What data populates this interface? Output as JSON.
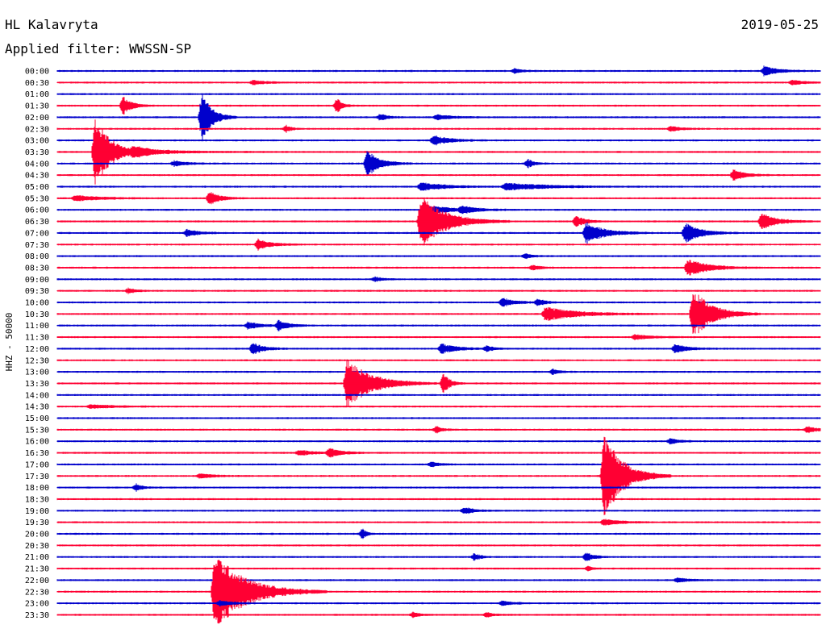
{
  "header": {
    "station": "HL Kalavryta",
    "date": "2019-05-25",
    "filter_label": "Applied filter: WWSSN-SP"
  },
  "chart_data": {
    "type": "line",
    "title": "HL Kalavryta",
    "subtitle": "Applied filter: WWSSN-SP",
    "ylabel": "HHZ - 50000",
    "date": "2019-05-25",
    "line_minutes": 30,
    "colors": {
      "even_line": "#0000cc",
      "odd_line": "#ff0033"
    },
    "rows": [
      "00:00",
      "00:30",
      "01:00",
      "01:30",
      "02:00",
      "02:30",
      "03:00",
      "03:30",
      "04:00",
      "04:30",
      "05:00",
      "05:30",
      "06:00",
      "06:30",
      "07:00",
      "07:30",
      "08:00",
      "08:30",
      "09:00",
      "09:30",
      "10:00",
      "10:30",
      "11:00",
      "11:30",
      "12:00",
      "12:30",
      "13:00",
      "13:30",
      "14:00",
      "14:30",
      "15:00",
      "15:30",
      "16:00",
      "16:30",
      "17:00",
      "17:30",
      "18:00",
      "18:30",
      "19:00",
      "19:30",
      "20:00",
      "20:30",
      "21:00",
      "21:30",
      "22:00",
      "22:30",
      "23:00",
      "23:30"
    ],
    "events": [
      {
        "row": 0,
        "minute": 27.7,
        "amplitude": 0.6,
        "duration": 1.0
      },
      {
        "row": 0,
        "minute": 17.9,
        "amplitude": 0.3,
        "duration": 0.5
      },
      {
        "row": 1,
        "minute": 7.6,
        "amplitude": 0.25,
        "duration": 1.0
      },
      {
        "row": 1,
        "minute": 28.8,
        "amplitude": 0.25,
        "duration": 1.0
      },
      {
        "row": 3,
        "minute": 2.5,
        "amplitude": 1.0,
        "duration": 0.7
      },
      {
        "row": 3,
        "minute": 10.9,
        "amplitude": 0.9,
        "duration": 0.4
      },
      {
        "row": 4,
        "minute": 5.6,
        "amplitude": 3.0,
        "duration": 0.8
      },
      {
        "row": 4,
        "minute": 12.6,
        "amplitude": 0.4,
        "duration": 0.6
      },
      {
        "row": 4,
        "minute": 14.8,
        "amplitude": 0.3,
        "duration": 1.2
      },
      {
        "row": 5,
        "minute": 8.9,
        "amplitude": 0.4,
        "duration": 0.4
      },
      {
        "row": 5,
        "minute": 24.0,
        "amplitude": 0.3,
        "duration": 0.8
      },
      {
        "row": 6,
        "minute": 14.7,
        "amplitude": 0.6,
        "duration": 1.2
      },
      {
        "row": 7,
        "minute": 1.4,
        "amplitude": 4.0,
        "duration": 1.3
      },
      {
        "row": 7,
        "minute": 2.9,
        "amplitude": 0.4,
        "duration": 3.0
      },
      {
        "row": 8,
        "minute": 12.1,
        "amplitude": 1.5,
        "duration": 1.0
      },
      {
        "row": 8,
        "minute": 4.5,
        "amplitude": 0.3,
        "duration": 1.0
      },
      {
        "row": 8,
        "minute": 18.4,
        "amplitude": 0.5,
        "duration": 0.5
      },
      {
        "row": 9,
        "minute": 26.5,
        "amplitude": 0.7,
        "duration": 0.8
      },
      {
        "row": 10,
        "minute": 14.2,
        "amplitude": 0.5,
        "duration": 1.8
      },
      {
        "row": 10,
        "minute": 17.5,
        "amplitude": 0.4,
        "duration": 3.5
      },
      {
        "row": 11,
        "minute": 5.9,
        "amplitude": 0.8,
        "duration": 0.8
      },
      {
        "row": 11,
        "minute": 0.6,
        "amplitude": 0.3,
        "duration": 2.0
      },
      {
        "row": 12,
        "minute": 14.4,
        "amplitude": 0.5,
        "duration": 2.0
      },
      {
        "row": 12,
        "minute": 15.8,
        "amplitude": 0.4,
        "duration": 1.0
      },
      {
        "row": 13,
        "minute": 14.2,
        "amplitude": 3.0,
        "duration": 2.0
      },
      {
        "row": 13,
        "minute": 20.3,
        "amplitude": 0.6,
        "duration": 0.8
      },
      {
        "row": 13,
        "minute": 27.6,
        "amplitude": 1.0,
        "duration": 1.2
      },
      {
        "row": 14,
        "minute": 20.7,
        "amplitude": 1.2,
        "duration": 1.5
      },
      {
        "row": 14,
        "minute": 24.6,
        "amplitude": 1.2,
        "duration": 1.2
      },
      {
        "row": 14,
        "minute": 5.0,
        "amplitude": 0.4,
        "duration": 1.0
      },
      {
        "row": 15,
        "minute": 7.8,
        "amplitude": 0.6,
        "duration": 1.0
      },
      {
        "row": 16,
        "minute": 18.3,
        "amplitude": 0.3,
        "duration": 0.5
      },
      {
        "row": 17,
        "minute": 24.7,
        "amplitude": 1.0,
        "duration": 1.6
      },
      {
        "row": 17,
        "minute": 18.6,
        "amplitude": 0.3,
        "duration": 0.6
      },
      {
        "row": 18,
        "minute": 12.4,
        "amplitude": 0.3,
        "duration": 0.5
      },
      {
        "row": 19,
        "minute": 2.7,
        "amplitude": 0.3,
        "duration": 0.6
      },
      {
        "row": 20,
        "minute": 17.4,
        "amplitude": 0.5,
        "duration": 1.0
      },
      {
        "row": 20,
        "minute": 18.8,
        "amplitude": 0.4,
        "duration": 0.6
      },
      {
        "row": 21,
        "minute": 19.1,
        "amplitude": 0.8,
        "duration": 2.5
      },
      {
        "row": 21,
        "minute": 24.9,
        "amplitude": 3.0,
        "duration": 1.5
      },
      {
        "row": 22,
        "minute": 7.4,
        "amplitude": 0.4,
        "duration": 1.0
      },
      {
        "row": 22,
        "minute": 8.6,
        "amplitude": 0.6,
        "duration": 0.8
      },
      {
        "row": 23,
        "minute": 22.6,
        "amplitude": 0.3,
        "duration": 1.2
      },
      {
        "row": 24,
        "minute": 7.6,
        "amplitude": 0.7,
        "duration": 0.8
      },
      {
        "row": 24,
        "minute": 15.0,
        "amplitude": 0.6,
        "duration": 1.2
      },
      {
        "row": 24,
        "minute": 16.8,
        "amplitude": 0.3,
        "duration": 0.6
      },
      {
        "row": 24,
        "minute": 24.2,
        "amplitude": 0.5,
        "duration": 1.0
      },
      {
        "row": 26,
        "minute": 19.4,
        "amplitude": 0.3,
        "duration": 0.5
      },
      {
        "row": 27,
        "minute": 11.3,
        "amplitude": 2.8,
        "duration": 2.0
      },
      {
        "row": 27,
        "minute": 15.1,
        "amplitude": 1.2,
        "duration": 0.5
      },
      {
        "row": 29,
        "minute": 1.2,
        "amplitude": 0.2,
        "duration": 2.0
      },
      {
        "row": 31,
        "minute": 14.8,
        "amplitude": 0.4,
        "duration": 0.5
      },
      {
        "row": 31,
        "minute": 29.4,
        "amplitude": 0.4,
        "duration": 0.7
      },
      {
        "row": 32,
        "minute": 24.0,
        "amplitude": 0.3,
        "duration": 0.8
      },
      {
        "row": 33,
        "minute": 9.4,
        "amplitude": 0.3,
        "duration": 1.2
      },
      {
        "row": 33,
        "minute": 10.6,
        "amplitude": 0.5,
        "duration": 1.0
      },
      {
        "row": 34,
        "minute": 14.6,
        "amplitude": 0.3,
        "duration": 0.6
      },
      {
        "row": 35,
        "minute": 21.4,
        "amplitude": 5.0,
        "duration": 1.5
      },
      {
        "row": 35,
        "minute": 5.5,
        "amplitude": 0.3,
        "duration": 1.0
      },
      {
        "row": 36,
        "minute": 3.0,
        "amplitude": 0.4,
        "duration": 0.5
      },
      {
        "row": 38,
        "minute": 15.9,
        "amplitude": 0.4,
        "duration": 0.8
      },
      {
        "row": 39,
        "minute": 21.4,
        "amplitude": 0.4,
        "duration": 1.2
      },
      {
        "row": 40,
        "minute": 11.9,
        "amplitude": 0.7,
        "duration": 0.3
      },
      {
        "row": 42,
        "minute": 16.3,
        "amplitude": 0.4,
        "duration": 0.5
      },
      {
        "row": 42,
        "minute": 20.7,
        "amplitude": 0.5,
        "duration": 0.6
      },
      {
        "row": 43,
        "minute": 20.8,
        "amplitude": 0.3,
        "duration": 0.3
      },
      {
        "row": 44,
        "minute": 24.3,
        "amplitude": 0.3,
        "duration": 0.8
      },
      {
        "row": 45,
        "minute": 6.1,
        "amplitude": 4.5,
        "duration": 2.5
      },
      {
        "row": 46,
        "minute": 17.4,
        "amplitude": 0.3,
        "duration": 0.8
      },
      {
        "row": 46,
        "minute": 6.3,
        "amplitude": 0.3,
        "duration": 1.0
      },
      {
        "row": 47,
        "minute": 13.9,
        "amplitude": 0.3,
        "duration": 0.5
      },
      {
        "row": 47,
        "minute": 16.8,
        "amplitude": 0.3,
        "duration": 0.5
      }
    ]
  }
}
